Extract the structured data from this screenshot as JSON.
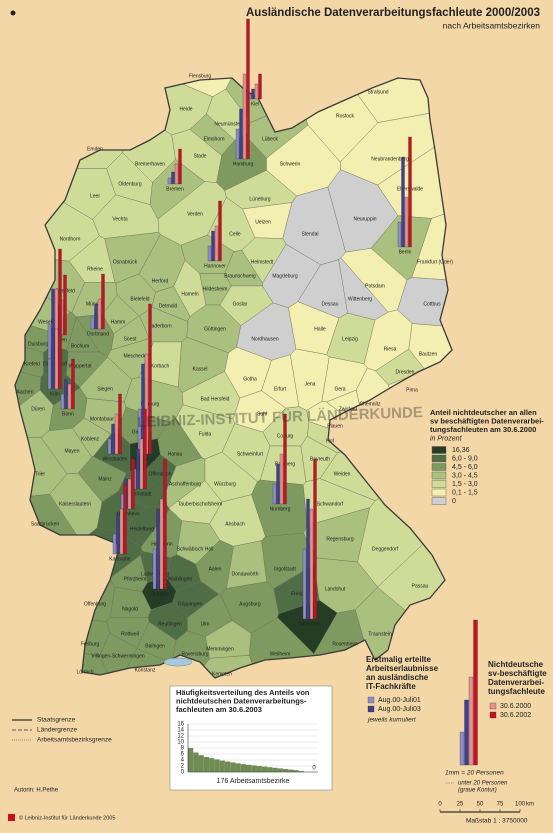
{
  "title": "Ausländische Datenverarbeitungsfachleute 2000/2003",
  "subtitle": "nach Arbeitsamtsbezirken",
  "watermark": "LEIBNIZ-INSTITUT FÜR LÄNDERKUNDE",
  "districts": [
    {
      "name": "Flensburg",
      "class": 5
    },
    {
      "name": "Heide",
      "class": 4
    },
    {
      "name": "Kiel",
      "class": 3,
      "bars": [
        50,
        100,
        150,
        250
      ]
    },
    {
      "name": "Neumünster",
      "class": 4
    },
    {
      "name": "Lübeck",
      "class": 3
    },
    {
      "name": "Elmshorn",
      "class": 3
    },
    {
      "name": "Hamburg",
      "class": 2,
      "bars": [
        300,
        500,
        850,
        1400
      ]
    },
    {
      "name": "Stralsund",
      "class": 5
    },
    {
      "name": "Rostock",
      "class": 5
    },
    {
      "name": "Schwerin",
      "class": 5
    },
    {
      "name": "Neubrandenburg",
      "class": 5
    },
    {
      "name": "Stade",
      "class": 4
    },
    {
      "name": "Bremerhaven",
      "class": 4
    },
    {
      "name": "Emden",
      "class": 4
    },
    {
      "name": "Oldenburg",
      "class": 4
    },
    {
      "name": "Bremen",
      "class": 3,
      "bars": [
        60,
        120,
        200,
        350
      ]
    },
    {
      "name": "Leer",
      "class": 4
    },
    {
      "name": "Verden",
      "class": 4
    },
    {
      "name": "Lüneburg",
      "class": 4
    },
    {
      "name": "Uelzen",
      "class": 5
    },
    {
      "name": "Eberswalde",
      "class": 5
    },
    {
      "name": "Neuruppin",
      "class": 6
    },
    {
      "name": "Stendal",
      "class": 6
    },
    {
      "name": "Celle",
      "class": 4
    },
    {
      "name": "Nordhorn",
      "class": 4
    },
    {
      "name": "Vechta",
      "class": 4
    },
    {
      "name": "Osnabrück",
      "class": 3
    },
    {
      "name": "Hannover",
      "class": 3,
      "bars": [
        150,
        300,
        350,
        600
      ]
    },
    {
      "name": "Helmstedt",
      "class": 4
    },
    {
      "name": "Braunschweig",
      "class": 3
    },
    {
      "name": "Magdeburg",
      "class": 6
    },
    {
      "name": "Berlin",
      "class": 3,
      "bars": [
        250,
        900,
        500,
        1100
      ]
    },
    {
      "name": "Frankfurt (Oder)",
      "class": 5
    },
    {
      "name": "Potsdam",
      "class": 5
    },
    {
      "name": "Cottbus",
      "class": 6
    },
    {
      "name": "Dessau",
      "class": 6
    },
    {
      "name": "Wittenberg",
      "class": 6
    },
    {
      "name": "Rheine",
      "class": 4
    },
    {
      "name": "Münster",
      "class": 3
    },
    {
      "name": "Bielefeld",
      "class": 3
    },
    {
      "name": "Herford",
      "class": 3
    },
    {
      "name": "Detmold",
      "class": 3
    },
    {
      "name": "Hameln",
      "class": 4
    },
    {
      "name": "Hildesheim",
      "class": 3
    },
    {
      "name": "Goslar",
      "class": 4
    },
    {
      "name": "Göttingen",
      "class": 3
    },
    {
      "name": "Nordhausen",
      "class": 6
    },
    {
      "name": "Halle",
      "class": 5
    },
    {
      "name": "Leipzig",
      "class": 4
    },
    {
      "name": "Riesa",
      "class": 5
    },
    {
      "name": "Bautzen",
      "class": 5
    },
    {
      "name": "Dresden",
      "class": 4
    },
    {
      "name": "Pirna",
      "class": 5
    },
    {
      "name": "Paderborn",
      "class": 3
    },
    {
      "name": "Coesfeld",
      "class": 3
    },
    {
      "name": "Wesel",
      "class": 3
    },
    {
      "name": "Duisburg",
      "class": 2
    },
    {
      "name": "Essen",
      "class": 2,
      "bars": [
        150,
        300,
        350,
        600
      ]
    },
    {
      "name": "Bochum",
      "class": 2
    },
    {
      "name": "Dortmund",
      "class": 2,
      "bars": [
        120,
        250,
        300,
        550
      ]
    },
    {
      "name": "Hamm",
      "class": 3
    },
    {
      "name": "Krefeld",
      "class": 2
    },
    {
      "name": "Düsseldorf",
      "class": 1,
      "bars": [
        350,
        700,
        700,
        1100
      ]
    },
    {
      "name": "Wuppertal",
      "class": 2
    },
    {
      "name": "Köln",
      "class": 1,
      "bars": [
        300,
        600,
        600,
        1000
      ]
    },
    {
      "name": "Aachen",
      "class": 2
    },
    {
      "name": "Düren",
      "class": 3
    },
    {
      "name": "Bonn",
      "class": 2,
      "bars": [
        150,
        300,
        250,
        500
      ]
    },
    {
      "name": "Siegen",
      "class": 3
    },
    {
      "name": "Meschede",
      "class": 3
    },
    {
      "name": "Soest",
      "class": 3
    },
    {
      "name": "Korbach",
      "class": 4
    },
    {
      "name": "Kassel",
      "class": 3
    },
    {
      "name": "Bad Hersfeld",
      "class": 4
    },
    {
      "name": "Marburg",
      "class": 3
    },
    {
      "name": "Gießen",
      "class": 2
    },
    {
      "name": "Fulda",
      "class": 4
    },
    {
      "name": "Gotha",
      "class": 5
    },
    {
      "name": "Erfurt",
      "class": 5
    },
    {
      "name": "Jena",
      "class": 5
    },
    {
      "name": "Gera",
      "class": 5
    },
    {
      "name": "Chemnitz",
      "class": 5
    },
    {
      "name": "Zwickau",
      "class": 5
    },
    {
      "name": "Plauen",
      "class": 5
    },
    {
      "name": "Suhl",
      "class": 5
    },
    {
      "name": "Koblenz",
      "class": 3
    },
    {
      "name": "Montabaur",
      "class": 3
    },
    {
      "name": "Mayen",
      "class": 3
    },
    {
      "name": "Trier",
      "class": 3
    },
    {
      "name": "Wiesbaden",
      "class": 1,
      "bars": [
        150,
        300,
        400,
        600
      ]
    },
    {
      "name": "Mainz",
      "class": 2
    },
    {
      "name": "Frankfurt",
      "class": 0,
      "bars": [
        450,
        900,
        1000,
        1500
      ]
    },
    {
      "name": "Hanau",
      "class": 2
    },
    {
      "name": "Offenbach",
      "class": 1
    },
    {
      "name": "Darmstadt",
      "class": 1,
      "bars": [
        200,
        400,
        500,
        800
      ]
    },
    {
      "name": "Aschaffenburg",
      "class": 3
    },
    {
      "name": "Würzburg",
      "class": 4
    },
    {
      "name": "Schweinfurt",
      "class": 4
    },
    {
      "name": "Coburg",
      "class": 4
    },
    {
      "name": "Bamberg",
      "class": 4
    },
    {
      "name": "Bayreuth",
      "class": 4
    },
    {
      "name": "Hof",
      "class": 4
    },
    {
      "name": "Weiden",
      "class": 4
    },
    {
      "name": "Kaiserslautern",
      "class": 3
    },
    {
      "name": "Saarbrücken",
      "class": 2
    },
    {
      "name": "Mannheim",
      "class": 1,
      "bars": [
        150,
        300,
        300,
        500
      ]
    },
    {
      "name": "Heidelberg",
      "class": 1
    },
    {
      "name": "Karlsruhe",
      "class": 1,
      "bars": [
        200,
        400,
        450,
        700
      ]
    },
    {
      "name": "Pforzheim",
      "class": 2
    },
    {
      "name": "Tauberbischofsheim",
      "class": 4
    },
    {
      "name": "Heilbronn",
      "class": 2
    },
    {
      "name": "Schwäbisch Hall",
      "class": 3
    },
    {
      "name": "Ansbach",
      "class": 4
    },
    {
      "name": "Nürnberg",
      "class": 2,
      "bars": [
        200,
        400,
        500,
        900
      ]
    },
    {
      "name": "Schwandorf",
      "class": 4
    },
    {
      "name": "Regensburg",
      "class": 3
    },
    {
      "name": "Deggendorf",
      "class": 4
    },
    {
      "name": "Passau",
      "class": 4
    },
    {
      "name": "Ludwigsburg",
      "class": 1
    },
    {
      "name": "Waiblingen",
      "class": 1
    },
    {
      "name": "Stuttgart",
      "class": 0,
      "bars": [
        400,
        800,
        900,
        1300
      ]
    },
    {
      "name": "Aalen",
      "class": 2
    },
    {
      "name": "Göppingen",
      "class": 1
    },
    {
      "name": "Nagold",
      "class": 2
    },
    {
      "name": "Reutlingen",
      "class": 1
    },
    {
      "name": "Offenburg",
      "class": 2
    },
    {
      "name": "Rottweil",
      "class": 2
    },
    {
      "name": "Balingen",
      "class": 2
    },
    {
      "name": "Freiburg",
      "class": 2
    },
    {
      "name": "Villingen-Schwenningen",
      "class": 2
    },
    {
      "name": "Lörrach",
      "class": 2
    },
    {
      "name": "Konstanz",
      "class": 2
    },
    {
      "name": "Ravensburg",
      "class": 2
    },
    {
      "name": "Ulm",
      "class": 2
    },
    {
      "name": "Memmingen",
      "class": 3
    },
    {
      "name": "Kempten",
      "class": 3
    },
    {
      "name": "Donauwörth",
      "class": 3
    },
    {
      "name": "Ingolstadt",
      "class": 2
    },
    {
      "name": "Augsburg",
      "class": 2
    },
    {
      "name": "Freising",
      "class": 1
    },
    {
      "name": "Landshut",
      "class": 3
    },
    {
      "name": "München",
      "class": 0,
      "bars": [
        700,
        1200,
        1100,
        1600
      ]
    },
    {
      "name": "Weilheim",
      "class": 2
    },
    {
      "name": "Rosenheim",
      "class": 2
    },
    {
      "name": "Traunstein",
      "class": 3
    }
  ],
  "choropleth_legend": {
    "title_lines": [
      "Anteil nichtdeutscher an allen",
      "sv beschäftigten Datenverarbei-",
      "tungsfachleuten am 30.6.2000"
    ],
    "unit": "in Prozent",
    "classes": [
      {
        "label": "16,36",
        "color": "#243d24"
      },
      {
        "label": "6,0  -  9,0",
        "color": "#4f6e45"
      },
      {
        "label": "4,5  -  6,0",
        "color": "#7f9a60"
      },
      {
        "label": "3,0  -  4,5",
        "color": "#a9c07e"
      },
      {
        "label": "1,5  -  3,0",
        "color": "#cfdc98"
      },
      {
        "label": "0,1  -  1,5",
        "color": "#f2efb0"
      },
      {
        "label": "0",
        "color": "#cfcfcf"
      }
    ]
  },
  "permits_legend": {
    "title_lines": [
      "Erstmalig erteilte",
      "Arbeitserlaubnisse",
      "an ausländische",
      "IT-Fachkräfte"
    ],
    "series": [
      {
        "name": "Aug.00-Juli01",
        "color": "#8d8dc8"
      },
      {
        "name": "Aug.00-Juli03",
        "color": "#3f3f8f"
      }
    ],
    "note": "jeweils kumuliert"
  },
  "employees_legend": {
    "title_lines": [
      "Nichtdeutsche",
      "sv-beschäftigte",
      "Datenverarbei-",
      "tungsfachleute"
    ],
    "series": [
      {
        "name": "30.6.2000",
        "color": "#e88f8f"
      },
      {
        "name": "30.6.2002",
        "color": "#c8101e"
      }
    ]
  },
  "bar_example": [
    330,
    650,
    880,
    1450
  ],
  "bar_scale": "1mm = 20 Personen",
  "small_note_lines": [
    "unter 20 Personen",
    "(graue Kontur)"
  ],
  "histogram": {
    "type": "bar",
    "title_lines": [
      "Häufigkeitsverteilung des Anteils von",
      "nichtdeutschen Datenverarbeitungs-",
      "fachleuten am 30.6.2003"
    ],
    "values": [
      8,
      6.5,
      5.6,
      5,
      4.6,
      4.2,
      3.8,
      3.5,
      3.2,
      2.9,
      2.6,
      2.4,
      2.2,
      2,
      1.8,
      1.6,
      1.4,
      1.2,
      1,
      0.8,
      0.6,
      0.3
    ],
    "color": "#6f8c55",
    "ylim": [
      0,
      16
    ],
    "yticks": [
      0,
      2,
      4,
      6,
      8,
      10,
      12,
      14,
      16
    ],
    "xlabel": "176 Arbeitsamtsbezirke",
    "end_label": "0"
  },
  "boundaries": [
    "Staatsgrenze",
    "Ländergrenze",
    "Arbeitsamtsbezirksgrenze"
  ],
  "scalebar": {
    "ticks": [
      0,
      25,
      50,
      75,
      100
    ],
    "unit": "km",
    "label": "Maßstab  1 : 3750000"
  },
  "author": "Autorin:  H.Pethe",
  "copyright": "© Leibniz-Institut für Länderkunde 2005"
}
